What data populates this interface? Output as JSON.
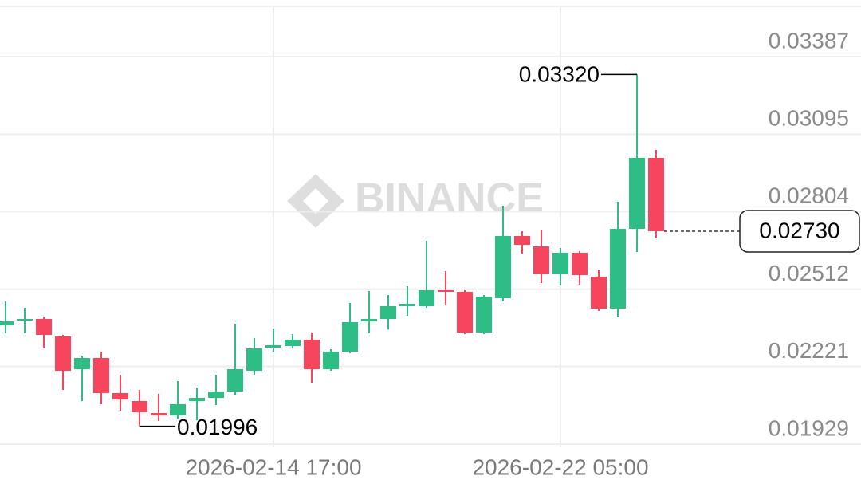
{
  "chart_data": {
    "type": "candlestick",
    "watermark": "BINANCE",
    "categories": [
      null,
      null,
      null,
      null,
      null,
      null,
      null,
      null,
      null,
      null,
      null,
      null,
      null,
      null,
      "2026-02-14 17:00",
      null,
      null,
      null,
      null,
      null,
      null,
      null,
      null,
      null,
      null,
      null,
      null,
      null,
      null,
      "2026-02-22 05:00",
      null,
      null,
      null,
      null,
      null
    ],
    "open": [
      0.02376,
      0.02394,
      0.024,
      0.02334,
      0.02211,
      0.02253,
      0.02121,
      0.02091,
      0.02046,
      0.02037,
      0.02091,
      0.02103,
      0.02127,
      0.02205,
      0.02292,
      0.02298,
      0.02322,
      0.02211,
      0.02277,
      0.02391,
      0.024,
      0.02448,
      0.02448,
      0.02508,
      0.02502,
      0.02349,
      0.02478,
      0.02712,
      0.02673,
      0.02568,
      0.02649,
      0.02559,
      0.02439,
      0.02739,
      0.03006
    ],
    "high": [
      0.02466,
      0.02442,
      0.02409,
      0.0234,
      0.02262,
      0.02277,
      0.0219,
      0.02133,
      0.02118,
      0.02166,
      0.02142,
      0.0219,
      0.02382,
      0.02328,
      0.02364,
      0.02343,
      0.02349,
      0.02286,
      0.0246,
      0.02505,
      0.0249,
      0.02523,
      0.02694,
      0.0258,
      0.02508,
      0.0249,
      0.02826,
      0.0273,
      0.02736,
      0.02667,
      0.02655,
      0.02586,
      0.02841,
      0.0332,
      0.03036
    ],
    "low": [
      0.02346,
      0.02346,
      0.02289,
      0.02133,
      0.02091,
      0.02079,
      0.02055,
      0.01996,
      0.02016,
      0.02025,
      0.02019,
      0.02076,
      0.02112,
      0.0219,
      0.02277,
      0.02289,
      0.0216,
      0.02205,
      0.02271,
      0.02346,
      0.0236,
      0.02412,
      0.02442,
      0.02451,
      0.02343,
      0.02343,
      0.02466,
      0.02646,
      0.02535,
      0.02526,
      0.02529,
      0.0243,
      0.02406,
      0.02652,
      0.02706
    ],
    "close": [
      0.02391,
      0.024,
      0.0234,
      0.02205,
      0.02253,
      0.02121,
      0.02097,
      0.02049,
      0.02037,
      0.02079,
      0.02103,
      0.02127,
      0.02211,
      0.02289,
      0.02301,
      0.02322,
      0.02211,
      0.02277,
      0.02388,
      0.024,
      0.02448,
      0.02457,
      0.02508,
      0.02502,
      0.02349,
      0.02484,
      0.02712,
      0.02679,
      0.02568,
      0.02649,
      0.02565,
      0.02439,
      0.02739,
      0.03006,
      0.0273
    ],
    "up_color": "#2ebd85",
    "down_color": "#f6465d",
    "high_label": "0.03320",
    "low_label": "0.01996",
    "last_price_label": "0.02730",
    "ylim": [
      0.0192,
      0.036
    ],
    "yticks": [
      0.01929,
      0.02221,
      0.02512,
      0.02804,
      0.03095,
      0.03387
    ],
    "grid": true
  }
}
